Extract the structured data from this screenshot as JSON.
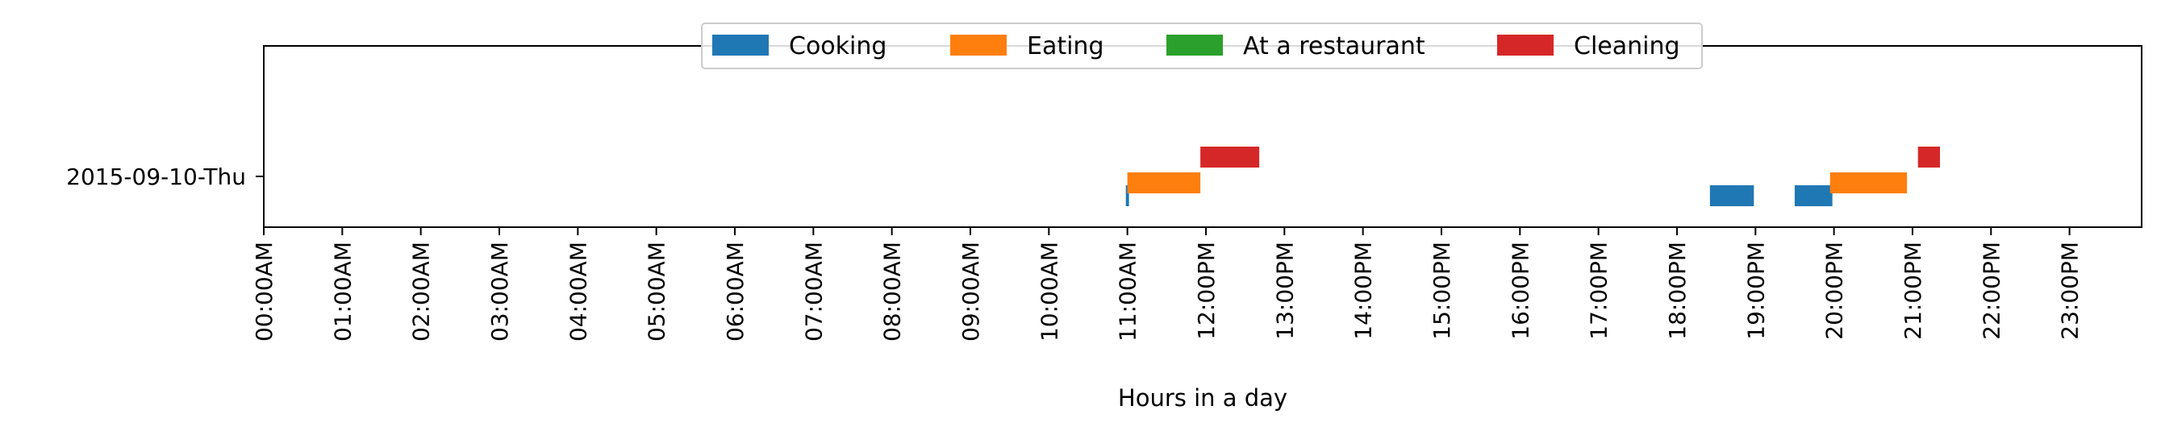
{
  "chart_data": {
    "type": "bar",
    "subtype": "horizontal-timeline",
    "title": "",
    "xlabel": "Hours in a day",
    "ylabel": "",
    "xlim": [
      0,
      24
    ],
    "x_unit": "hours",
    "y_categories": [
      "2015-09-10-Thu"
    ],
    "x_tick_labels": [
      "00:00AM",
      "01:00AM",
      "02:00AM",
      "03:00AM",
      "04:00AM",
      "05:00AM",
      "06:00AM",
      "07:00AM",
      "08:00AM",
      "09:00AM",
      "10:00AM",
      "11:00AM",
      "12:00PM",
      "13:00PM",
      "14:00PM",
      "15:00PM",
      "16:00PM",
      "17:00PM",
      "18:00PM",
      "19:00PM",
      "20:00PM",
      "21:00PM",
      "22:00PM",
      "23:00PM"
    ],
    "grid": false,
    "legend_position": "top-center",
    "series": [
      {
        "name": "Cooking",
        "color": "#1f77b4",
        "intervals": [
          [
            10.98,
            11.02
          ],
          [
            18.42,
            18.98
          ],
          [
            19.5,
            19.98
          ]
        ]
      },
      {
        "name": "Eating",
        "color": "#ff7f0e",
        "intervals": [
          [
            11.0,
            11.93
          ],
          [
            19.95,
            20.93
          ]
        ]
      },
      {
        "name": "At a restaurant",
        "color": "#2ca02c",
        "intervals": []
      },
      {
        "name": "Cleaning",
        "color": "#d62728",
        "intervals": [
          [
            11.93,
            12.68
          ],
          [
            21.07,
            21.35
          ]
        ]
      }
    ]
  }
}
